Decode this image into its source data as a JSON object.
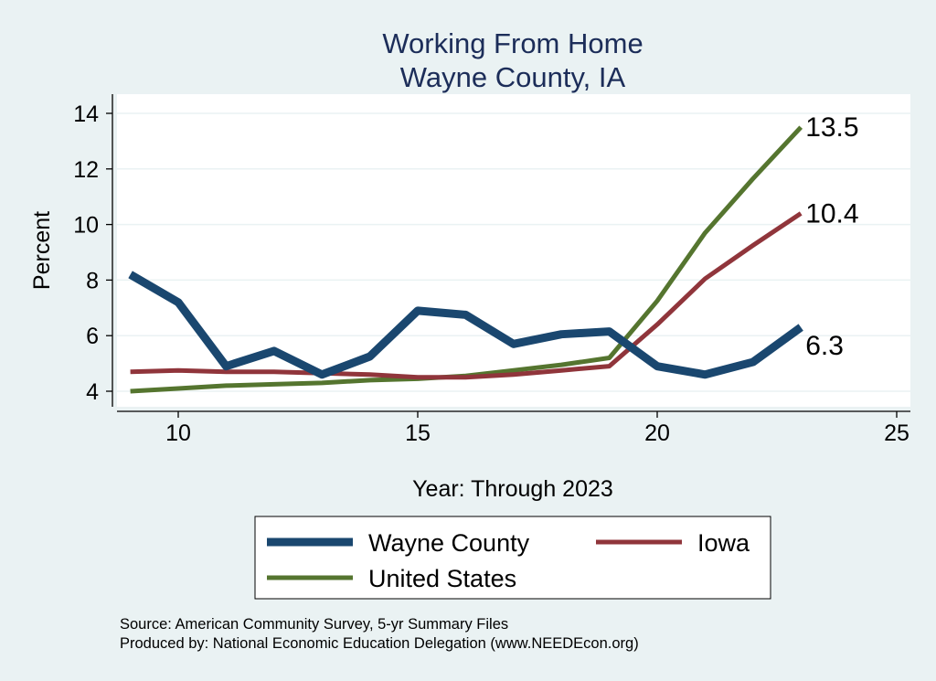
{
  "chart_data": {
    "type": "line",
    "title": "Working From Home",
    "subtitle": "Wayne County, IA",
    "xlabel": "Year: Through 2023",
    "ylabel": "Percent",
    "xlim": [
      8.8,
      25.3
    ],
    "ylim": [
      3.5,
      14.7
    ],
    "xticks": [
      10,
      15,
      20,
      25
    ],
    "yticks": [
      4,
      6,
      8,
      10,
      12,
      14
    ],
    "grid": true,
    "x": [
      9,
      10,
      11,
      12,
      13,
      14,
      15,
      16,
      17,
      18,
      19,
      20,
      21,
      22,
      23
    ],
    "series": [
      {
        "name": "Wayne County",
        "color": "#1a476f",
        "width": 9,
        "values": [
          8.2,
          7.2,
          4.9,
          5.45,
          4.6,
          5.25,
          6.9,
          6.75,
          5.7,
          6.05,
          6.15,
          4.9,
          4.6,
          5.05,
          6.3
        ],
        "end_label": "6.3"
      },
      {
        "name": "Iowa",
        "color": "#90353b",
        "width": 5,
        "values": [
          4.7,
          4.75,
          4.7,
          4.7,
          4.65,
          4.6,
          4.5,
          4.5,
          4.6,
          4.75,
          4.9,
          6.4,
          8.05,
          9.25,
          10.4
        ],
        "end_label": "10.4"
      },
      {
        "name": "United States",
        "color": "#55752f",
        "width": 5,
        "values": [
          4.0,
          4.1,
          4.2,
          4.25,
          4.3,
          4.4,
          4.45,
          4.55,
          4.75,
          4.95,
          5.2,
          7.25,
          9.7,
          11.65,
          13.5
        ],
        "end_label": "13.5"
      }
    ],
    "legend_position": "bottom"
  },
  "notes": {
    "source": "Source: American Community Survey, 5-yr Summary Files",
    "produced": "Produced by: National Economic Education Delegation (www.NEEDEcon.org)"
  }
}
